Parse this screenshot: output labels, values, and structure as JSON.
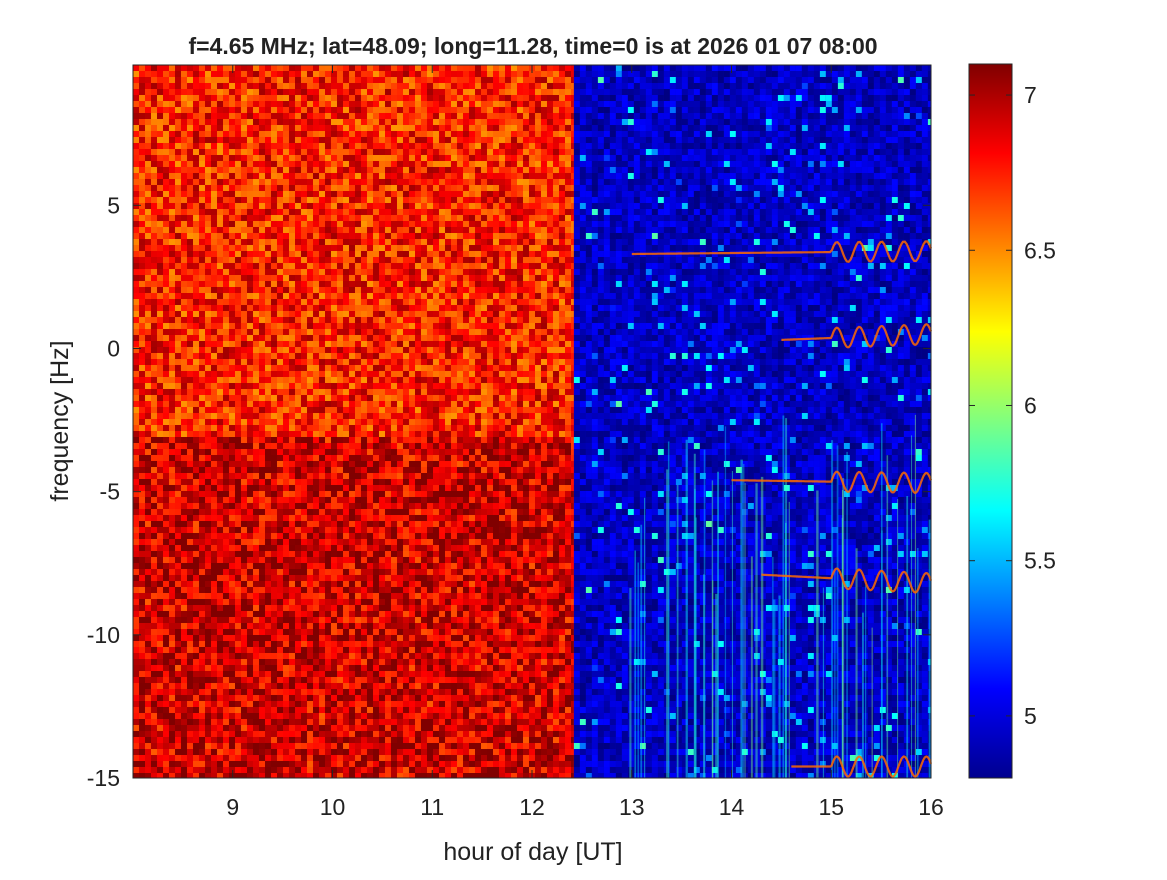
{
  "chart_data": {
    "type": "heatmap",
    "title": "f=4.65 MHz;  lat=48.09; long=11.28, time=0 is at 2026 01 07 08:00",
    "xlabel": "hour of day [UT]",
    "ylabel": "frequency [Hz]",
    "xlim": [
      8.0,
      16.0
    ],
    "ylim": [
      -15,
      9.9
    ],
    "x_ticks": [
      9,
      10,
      11,
      12,
      13,
      14,
      15,
      16
    ],
    "y_ticks": [
      -15,
      -10,
      -5,
      0,
      5
    ],
    "colorbar": {
      "colormap": "jet",
      "range": [
        4.8,
        7.1
      ],
      "ticks": [
        5,
        5.5,
        6,
        6.5,
        7
      ]
    },
    "regions": [
      {
        "x_range": [
          8.0,
          12.42
        ],
        "level": 6.75,
        "note": "high uniform noise, slightly higher below -3 Hz"
      },
      {
        "x_range": [
          12.42,
          16.0
        ],
        "level": 4.95,
        "note": "low background with vertical streaks"
      }
    ],
    "traces": [
      {
        "x_start": 13.0,
        "x_end": 16.0,
        "y_start": 3.3,
        "y_end": 3.4
      },
      {
        "x_start": 14.5,
        "x_end": 16.0,
        "y_start": 0.3,
        "y_end": 0.5
      },
      {
        "x_start": 14.0,
        "x_end": 16.0,
        "y_start": -4.6,
        "y_end": -4.7
      },
      {
        "x_start": 14.3,
        "x_end": 16.0,
        "y_start": -7.9,
        "y_end": -8.2
      },
      {
        "x_start": 14.6,
        "x_end": 16.0,
        "y_start": -14.6,
        "y_end": -14.6
      }
    ]
  }
}
